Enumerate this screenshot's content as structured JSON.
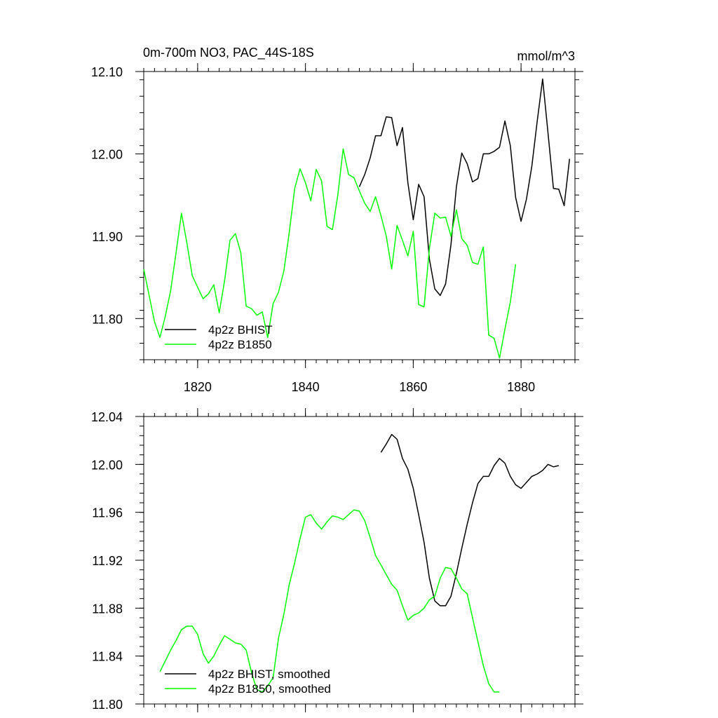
{
  "chart_data": [
    {
      "type": "line",
      "title_left": "0m-700m NO3, PAC_44S-18S",
      "title_right": "mmol/m^3",
      "xlim": [
        1810,
        1890
      ],
      "ylim": [
        11.75,
        12.1
      ],
      "x_ticks": [
        1820,
        1840,
        1860,
        1880
      ],
      "x_tick_labels": [
        "1820",
        "1840",
        "1860",
        "1880"
      ],
      "y_ticks": [
        11.8,
        11.9,
        12.0,
        12.1
      ],
      "y_tick_labels": [
        "11.80",
        "11.90",
        "12.00",
        "12.10"
      ],
      "y_minor_step": 0.02,
      "x_minor_step": 2,
      "legend_position": "bottom-left",
      "series": [
        {
          "name": "4p2z BHIST",
          "color": "#000000",
          "x": [
            1850,
            1851,
            1852,
            1853,
            1854,
            1855,
            1856,
            1857,
            1858,
            1859,
            1860,
            1861,
            1862,
            1863,
            1864,
            1865,
            1866,
            1867,
            1868,
            1869,
            1870,
            1871,
            1872,
            1873,
            1874,
            1875,
            1876,
            1877,
            1878,
            1879,
            1880,
            1881,
            1882,
            1883,
            1884,
            1885,
            1886,
            1887,
            1888,
            1889
          ],
          "values": [
            11.96,
            11.975,
            11.995,
            12.022,
            12.022,
            12.045,
            12.044,
            12.01,
            12.032,
            11.965,
            11.92,
            11.963,
            11.948,
            11.872,
            11.836,
            11.828,
            11.842,
            11.89,
            11.96,
            12.001,
            11.988,
            11.966,
            11.97,
            12.0,
            12.0,
            12.003,
            12.008,
            12.04,
            12.01,
            11.947,
            11.918,
            11.945,
            11.985,
            12.04,
            12.091,
            12.025,
            11.958,
            11.957,
            11.937,
            11.994
          ]
        },
        {
          "name": "4p2z B1850",
          "color": "#00ff00",
          "x": [
            1810,
            1811,
            1812,
            1813,
            1814,
            1815,
            1816,
            1817,
            1818,
            1819,
            1820,
            1821,
            1822,
            1823,
            1824,
            1825,
            1826,
            1827,
            1828,
            1829,
            1830,
            1831,
            1832,
            1833,
            1834,
            1835,
            1836,
            1837,
            1838,
            1839,
            1840,
            1841,
            1842,
            1843,
            1844,
            1845,
            1846,
            1847,
            1848,
            1849,
            1850,
            1851,
            1852,
            1853,
            1854,
            1855,
            1856,
            1857,
            1858,
            1859,
            1860,
            1861,
            1862,
            1863,
            1864,
            1865,
            1866,
            1867,
            1868,
            1869,
            1870,
            1871,
            1872,
            1873,
            1874,
            1875,
            1876,
            1877,
            1878,
            1879
          ],
          "values": [
            11.86,
            11.828,
            11.796,
            11.777,
            11.803,
            11.834,
            11.88,
            11.928,
            11.892,
            11.852,
            11.838,
            11.824,
            11.83,
            11.841,
            11.807,
            11.846,
            11.895,
            11.903,
            11.88,
            11.815,
            11.812,
            11.804,
            11.808,
            11.777,
            11.818,
            11.832,
            11.858,
            11.905,
            11.958,
            11.982,
            11.965,
            11.943,
            11.981,
            11.967,
            11.912,
            11.908,
            11.95,
            12.006,
            11.975,
            11.971,
            11.955,
            11.94,
            11.93,
            11.948,
            11.925,
            11.9,
            11.86,
            11.913,
            11.895,
            11.876,
            11.906,
            11.817,
            11.814,
            11.885,
            11.928,
            11.922,
            11.923,
            11.9,
            11.932,
            11.897,
            11.889,
            11.868,
            11.866,
            11.887,
            11.78,
            11.776,
            11.752,
            11.787,
            11.82,
            11.866
          ]
        }
      ]
    },
    {
      "type": "line",
      "xlim": [
        1810,
        1890
      ],
      "ylim": [
        11.8,
        12.04
      ],
      "x_ticks": [
        1820,
        1840,
        1860,
        1880
      ],
      "y_ticks": [
        11.8,
        11.84,
        11.88,
        11.92,
        11.96,
        12.0,
        12.04
      ],
      "y_tick_labels": [
        "11.80",
        "11.84",
        "11.88",
        "11.92",
        "11.96",
        "12.00",
        "12.04"
      ],
      "y_minor_step": 0.008,
      "x_minor_step": 2,
      "legend_position": "bottom-left",
      "series": [
        {
          "name": "4p2z BHIST, smoothed",
          "color": "#000000",
          "x": [
            1854,
            1855,
            1856,
            1857,
            1858,
            1859,
            1860,
            1861,
            1862,
            1863,
            1864,
            1865,
            1866,
            1867,
            1868,
            1869,
            1870,
            1871,
            1872,
            1873,
            1874,
            1875,
            1876,
            1877,
            1878,
            1879,
            1880,
            1881,
            1882,
            1883,
            1884,
            1885,
            1886,
            1887
          ],
          "values": [
            12.01,
            12.017,
            12.025,
            12.021,
            12.005,
            11.996,
            11.98,
            11.958,
            11.935,
            11.905,
            11.886,
            11.882,
            11.882,
            11.89,
            11.909,
            11.93,
            11.95,
            11.968,
            11.984,
            11.99,
            11.99,
            11.999,
            12.005,
            12.001,
            11.99,
            11.983,
            11.98,
            11.985,
            11.99,
            11.992,
            11.995,
            12.0,
            11.998,
            11.999
          ]
        },
        {
          "name": "4p2z B1850, smoothed",
          "color": "#00ff00",
          "x": [
            1813,
            1814,
            1815,
            1816,
            1817,
            1818,
            1819,
            1820,
            1821,
            1822,
            1823,
            1824,
            1825,
            1826,
            1827,
            1828,
            1829,
            1830,
            1831,
            1832,
            1833,
            1834,
            1835,
            1836,
            1837,
            1838,
            1839,
            1840,
            1841,
            1842,
            1843,
            1844,
            1845,
            1846,
            1847,
            1848,
            1849,
            1850,
            1851,
            1852,
            1853,
            1854,
            1855,
            1856,
            1857,
            1858,
            1859,
            1860,
            1861,
            1862,
            1863,
            1864,
            1865,
            1866,
            1867,
            1868,
            1869,
            1870,
            1871,
            1872,
            1873,
            1874,
            1875,
            1876
          ],
          "values": [
            11.827,
            11.836,
            11.845,
            11.853,
            11.862,
            11.865,
            11.865,
            11.858,
            11.842,
            11.834,
            11.84,
            11.849,
            11.857,
            11.854,
            11.851,
            11.85,
            11.845,
            11.826,
            11.812,
            11.81,
            11.815,
            11.822,
            11.855,
            11.875,
            11.9,
            11.918,
            11.938,
            11.956,
            11.958,
            11.951,
            11.946,
            11.952,
            11.957,
            11.956,
            11.954,
            11.958,
            11.962,
            11.961,
            11.953,
            11.939,
            11.924,
            11.916,
            11.908,
            11.9,
            11.895,
            11.882,
            11.87,
            11.874,
            11.876,
            11.88,
            11.887,
            11.89,
            11.905,
            11.914,
            11.913,
            11.905,
            11.896,
            11.892,
            11.872,
            11.852,
            11.832,
            11.817,
            11.81,
            11.81
          ]
        }
      ]
    }
  ]
}
